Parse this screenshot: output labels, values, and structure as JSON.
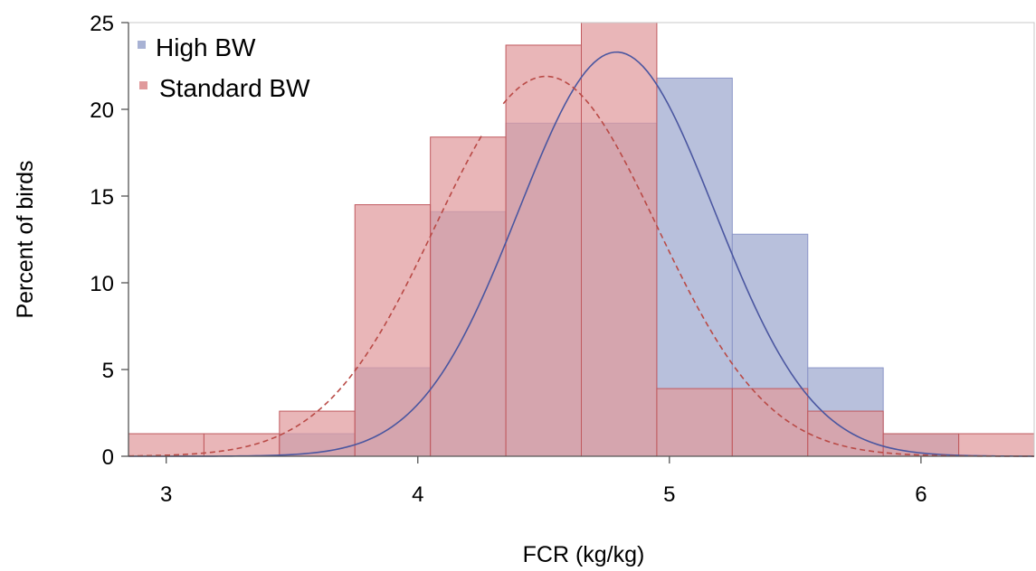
{
  "chart_data": {
    "type": "histogram",
    "xlabel": "FCR (kg/kg)",
    "ylabel": "Percent of birds",
    "xlim": [
      2.85,
      6.45
    ],
    "ylim": [
      0,
      25
    ],
    "xticks": [
      3,
      4,
      5,
      6
    ],
    "yticks": [
      0,
      5,
      10,
      15,
      20,
      25
    ],
    "grid": false,
    "legend_position": "top-left",
    "series": [
      {
        "name": "Standard BW",
        "color": "#e09a9c",
        "fill_opacity": 0.72,
        "stroke": "#c0595e",
        "bins": [
          {
            "x0": 2.85,
            "x1": 3.15,
            "value": 1.3
          },
          {
            "x0": 3.15,
            "x1": 3.45,
            "value": 1.3
          },
          {
            "x0": 3.45,
            "x1": 3.75,
            "value": 2.6
          },
          {
            "x0": 3.75,
            "x1": 4.05,
            "value": 14.5
          },
          {
            "x0": 4.05,
            "x1": 4.35,
            "value": 18.4
          },
          {
            "x0": 4.35,
            "x1": 4.65,
            "value": 23.7
          },
          {
            "x0": 4.65,
            "x1": 4.95,
            "value": 25.0
          },
          {
            "x0": 4.95,
            "x1": 5.25,
            "value": 3.9
          },
          {
            "x0": 5.25,
            "x1": 5.55,
            "value": 3.9
          },
          {
            "x0": 5.55,
            "x1": 5.85,
            "value": 2.6
          },
          {
            "x0": 5.85,
            "x1": 6.15,
            "value": 1.3
          },
          {
            "x0": 6.15,
            "x1": 6.45,
            "value": 1.3
          }
        ],
        "curve": {
          "style": "dashed",
          "color": "#b94a46",
          "mean": 4.51,
          "sd": 0.44,
          "peak": 21.9
        }
      },
      {
        "name": "High BW",
        "color": "#a8b2d4",
        "fill_opacity": 0.82,
        "stroke": "#8c96c8",
        "bins": [
          {
            "x0": 3.45,
            "x1": 3.75,
            "value": 1.3
          },
          {
            "x0": 3.75,
            "x1": 4.05,
            "value": 5.1
          },
          {
            "x0": 4.05,
            "x1": 4.35,
            "value": 14.1
          },
          {
            "x0": 4.35,
            "x1": 4.65,
            "value": 19.2
          },
          {
            "x0": 4.65,
            "x1": 4.95,
            "value": 19.2
          },
          {
            "x0": 4.95,
            "x1": 5.25,
            "value": 21.8
          },
          {
            "x0": 5.25,
            "x1": 5.55,
            "value": 12.8
          },
          {
            "x0": 5.55,
            "x1": 5.85,
            "value": 5.1
          },
          {
            "x0": 5.85,
            "x1": 6.15,
            "value": 1.3
          }
        ],
        "curve": {
          "style": "solid",
          "color": "#4a56a0",
          "mean": 4.79,
          "sd": 0.39,
          "peak": 23.3
        }
      }
    ]
  }
}
